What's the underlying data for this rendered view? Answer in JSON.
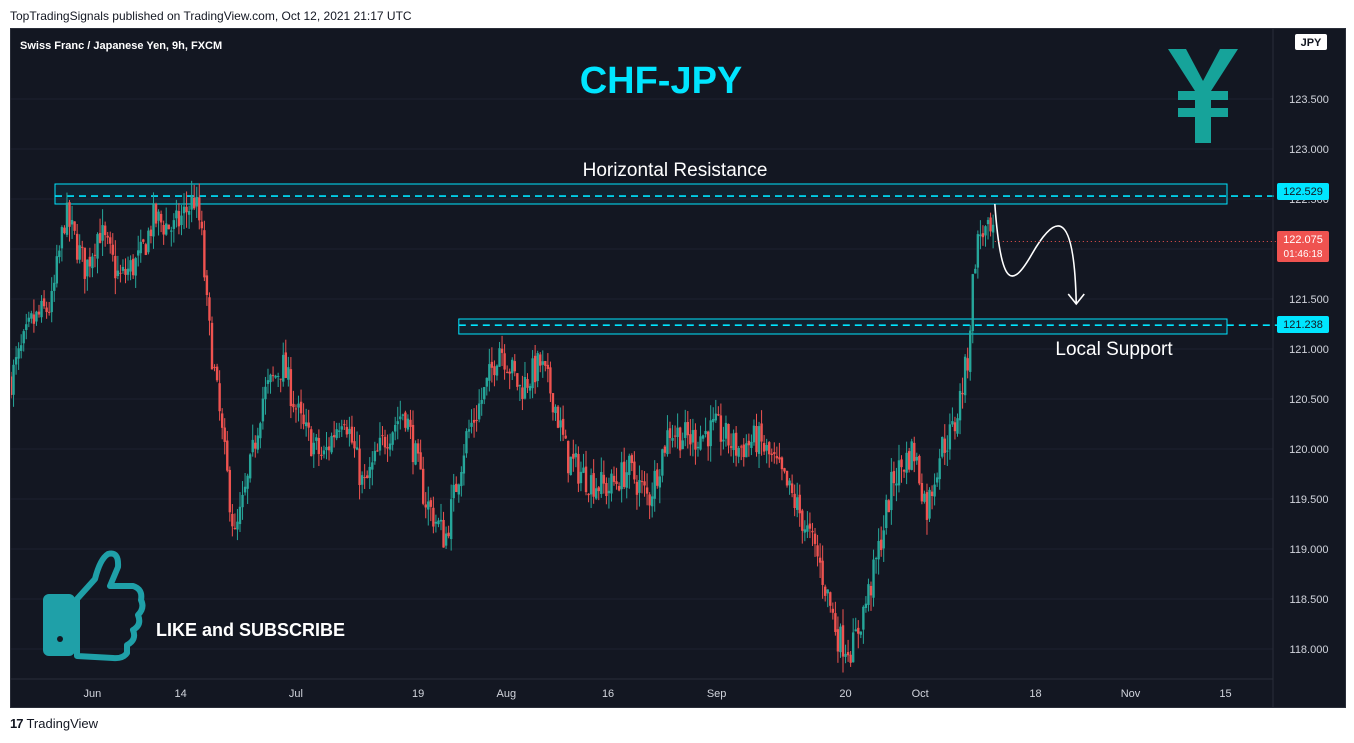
{
  "header": {
    "published": "TopTradingSignals published on TradingView.com, Oct 12, 2021 21:17 UTC"
  },
  "footer": {
    "brand": "TradingView"
  },
  "symbol": {
    "description": "Swiss Franc / Japanese Yen, 9h, FXCM",
    "currency_badge": "JPY"
  },
  "annotations": {
    "title": "CHF-JPY",
    "resistance_label": "Horizontal Resistance",
    "support_label": "Local Support",
    "cta": "LIKE and SUBSCRIBE"
  },
  "price_labels": {
    "resistance": "122.529",
    "support": "121.238",
    "last": "122.075",
    "countdown": "01:46:18"
  },
  "colors": {
    "up": "#26a69a",
    "down": "#ef5350",
    "accent": "#00e5ff",
    "icon": "#1fa0a8",
    "yen": "#16a39a"
  },
  "chart_data": {
    "type": "candlestick",
    "title": "CHF-JPY",
    "timeframe": "9h",
    "ylim": [
      117.7,
      124.2
    ],
    "y_ticks": [
      118.0,
      118.5,
      119.0,
      119.5,
      120.0,
      120.5,
      121.0,
      121.5,
      122.0,
      122.5,
      123.0,
      123.5
    ],
    "y_tick_labels": [
      "118.000",
      "118.500",
      "119.000",
      "119.500",
      "120.000",
      "120.500",
      "121.000",
      "121.500",
      "122.000",
      "122.500",
      "123.000",
      "123.500"
    ],
    "x_ticks": [
      {
        "label": "Jun",
        "date": "2021-06-01"
      },
      {
        "label": "14",
        "date": "2021-06-14"
      },
      {
        "label": "Jul",
        "date": "2021-07-01"
      },
      {
        "label": "19",
        "date": "2021-07-19"
      },
      {
        "label": "Aug",
        "date": "2021-08-01"
      },
      {
        "label": "16",
        "date": "2021-08-16"
      },
      {
        "label": "Sep",
        "date": "2021-09-01"
      },
      {
        "label": "20",
        "date": "2021-09-20"
      },
      {
        "label": "Oct",
        "date": "2021-10-01"
      },
      {
        "label": "18",
        "date": "2021-10-18"
      },
      {
        "label": "Nov",
        "date": "2021-11-01"
      },
      {
        "label": "15",
        "date": "2021-11-15"
      }
    ],
    "x_range": [
      "2021-05-20",
      "2021-11-22"
    ],
    "levels": [
      {
        "name": "Horizontal Resistance",
        "value": 122.529,
        "zone": [
          122.45,
          122.65
        ]
      },
      {
        "name": "Local Support",
        "value": 121.238,
        "zone": [
          121.15,
          121.3
        ]
      }
    ],
    "close_path": [
      [
        "2021-05-20",
        120.7
      ],
      [
        "2021-05-23",
        121.25
      ],
      [
        "2021-05-26",
        121.45
      ],
      [
        "2021-05-28",
        122.35
      ],
      [
        "2021-05-31",
        121.8
      ],
      [
        "2021-06-02",
        122.2
      ],
      [
        "2021-06-05",
        121.7
      ],
      [
        "2021-06-08",
        121.9
      ],
      [
        "2021-06-10",
        122.3
      ],
      [
        "2021-06-13",
        122.2
      ],
      [
        "2021-06-16",
        122.5
      ],
      [
        "2021-06-17",
        122.2
      ],
      [
        "2021-06-18",
        121.3
      ],
      [
        "2021-06-20",
        120.2
      ],
      [
        "2021-06-22",
        119.1
      ],
      [
        "2021-06-24",
        119.7
      ],
      [
        "2021-06-26",
        120.5
      ],
      [
        "2021-06-29",
        120.85
      ],
      [
        "2021-07-02",
        120.2
      ],
      [
        "2021-07-05",
        119.9
      ],
      [
        "2021-07-08",
        120.4
      ],
      [
        "2021-07-11",
        119.6
      ],
      [
        "2021-07-14",
        120.1
      ],
      [
        "2021-07-17",
        120.4
      ],
      [
        "2021-07-20",
        119.5
      ],
      [
        "2021-07-23",
        119.1
      ],
      [
        "2021-07-26",
        120.1
      ],
      [
        "2021-07-29",
        120.6
      ],
      [
        "2021-07-31",
        121.05
      ],
      [
        "2021-08-03",
        120.6
      ],
      [
        "2021-08-06",
        120.85
      ],
      [
        "2021-08-08",
        120.5
      ],
      [
        "2021-08-10",
        119.9
      ],
      [
        "2021-08-13",
        119.7
      ],
      [
        "2021-08-16",
        119.6
      ],
      [
        "2021-08-19",
        119.8
      ],
      [
        "2021-08-22",
        119.5
      ],
      [
        "2021-08-25",
        120.2
      ],
      [
        "2021-08-28",
        120.1
      ],
      [
        "2021-09-01",
        120.2
      ],
      [
        "2021-09-04",
        120.0
      ],
      [
        "2021-09-07",
        120.1
      ],
      [
        "2021-09-10",
        119.8
      ],
      [
        "2021-09-13",
        119.4
      ],
      [
        "2021-09-16",
        118.9
      ],
      [
        "2021-09-19",
        118.1
      ],
      [
        "2021-09-21",
        118.0
      ],
      [
        "2021-09-24",
        118.7
      ],
      [
        "2021-09-27",
        119.7
      ],
      [
        "2021-09-30",
        120.0
      ],
      [
        "2021-10-02",
        119.4
      ],
      [
        "2021-10-04",
        120.0
      ],
      [
        "2021-10-06",
        120.2
      ],
      [
        "2021-10-08",
        120.9
      ],
      [
        "2021-10-09",
        121.9
      ],
      [
        "2021-10-10",
        122.2
      ],
      [
        "2021-10-12",
        122.075
      ]
    ],
    "projection_path": [
      [
        "2021-10-12",
        122.45
      ],
      [
        "2021-10-16",
        121.9
      ],
      [
        "2021-10-20",
        122.1
      ],
      [
        "2021-10-24",
        121.45
      ]
    ]
  }
}
